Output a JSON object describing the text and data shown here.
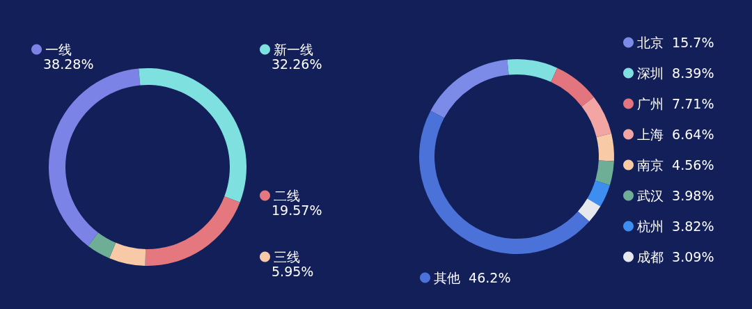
{
  "chart_data": [
    {
      "type": "donut",
      "categories": [
        "一线",
        "新一线",
        "二线",
        "三线",
        null
      ],
      "values": [
        38.28,
        32.26,
        19.57,
        5.95,
        3.94
      ],
      "value_labels": [
        "38.28%",
        "32.26%",
        "19.57%",
        "5.95%",
        null
      ],
      "colors": [
        "#7b84e6",
        "#7fe0e0",
        "#e5787f",
        "#f7c9a6",
        "#6fae96"
      ],
      "legend": "right"
    },
    {
      "type": "donut",
      "categories": [
        "北京",
        "深圳",
        "广州",
        "上海",
        "南京",
        "武汉",
        "杭州",
        "成都",
        "其他"
      ],
      "values": [
        15.7,
        8.39,
        7.71,
        6.64,
        4.56,
        3.98,
        3.82,
        3.09,
        46.2
      ],
      "value_labels": [
        "15.7%",
        "8.39%",
        "7.71%",
        "6.64%",
        "4.56%",
        "3.98%",
        "3.82%",
        "3.09%",
        "46.2%"
      ],
      "colors": [
        "#7d8be8",
        "#80e0e0",
        "#e3757e",
        "#f2a5a2",
        "#f8caa6",
        "#6fae96",
        "#3d8ef0",
        "#e6e8ee",
        "#4a72d8"
      ],
      "legend": "right"
    }
  ]
}
